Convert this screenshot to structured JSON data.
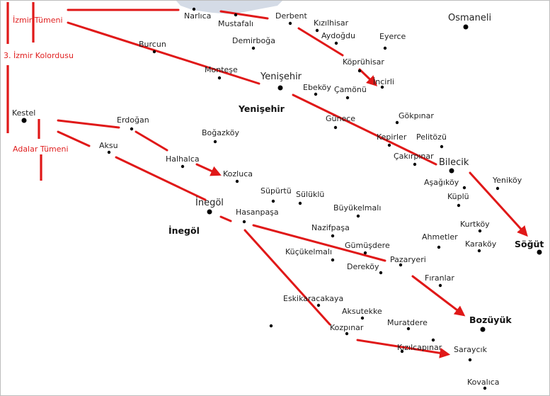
{
  "colors": {
    "arrow": "#e01818",
    "unit_text": "#e02020",
    "sea": "#d4dbe6",
    "town": "#000000"
  },
  "units": {
    "izmir_tumeni": "İzmir Tümeni",
    "izmir_kolordusu": "3. İzmir Kolordusu",
    "adalar_tumeni": "Adalar Tümeni"
  },
  "districts": {
    "yenisehir": "Yenişehir",
    "inegol": "İnegöl"
  },
  "towns": {
    "narlica": "Narlıca",
    "mustafali": "Mustafalı",
    "derbent": "Derbent",
    "kizilhisar": "Kızılhisar",
    "aydogdu": "Aydoğdu",
    "osmaneli": "Osmaneli",
    "burcun": "Burcun",
    "demirboga": "Demirboğa",
    "eyerce": "Eyerce",
    "koprühisar": "Köprühisar",
    "montese": "Monteşe",
    "yenisehir": "Yenişehir",
    "incirli": "İncirli",
    "ebekoy": "Ebeköy",
    "camonu": "Çamönü",
    "kestel": "Kestel",
    "gokpinar": "Gökpınar",
    "erdogan": "Erdoğan",
    "gunece": "Günece",
    "bogazkoy": "Boğazköy",
    "kepirler": "Kepirler",
    "pelitozu": "Pelitözü",
    "aksu": "Aksu",
    "cakirpinar": "Çakırpınar",
    "halhalca": "Halhalca",
    "bilecik": "Bilecik",
    "kozluca": "Kozluca",
    "asagikoy": "Aşağıköy",
    "yenikoy": "Yeniköy",
    "supurtu": "Süpürtü",
    "sulüklu": "Sülüklü",
    "kuplu": "Küplü",
    "inegol": "İnegöl",
    "buyukelmali": "Büyükelmalı",
    "hasanpasa": "Hasanpaşa",
    "kurtkoy": "Kurtköy",
    "nazifpasa": "Nazifpaşa",
    "sogut": "Söğüt",
    "ahmetler": "Ahmetler",
    "karakoy": "Karaköy",
    "gumusdere": "Gümüşdere",
    "kucukelmali": "Küçükelmalı",
    "pazaryeri": "Pazaryeri",
    "derekoy": "Dereköy",
    "firanlar": "Fıranlar",
    "eskikaracakaya": "Eskikaracakaya",
    "aksutekke": "Aksutekke",
    "bozuyuk": "Bozüyük",
    "muratdere": "Muratdere",
    "kozpinar": "Kozpınar",
    "kizilcapinar": "Kızılcapınar",
    "saraycik": "Saraycık",
    "kovalica": "Kovalıca"
  }
}
